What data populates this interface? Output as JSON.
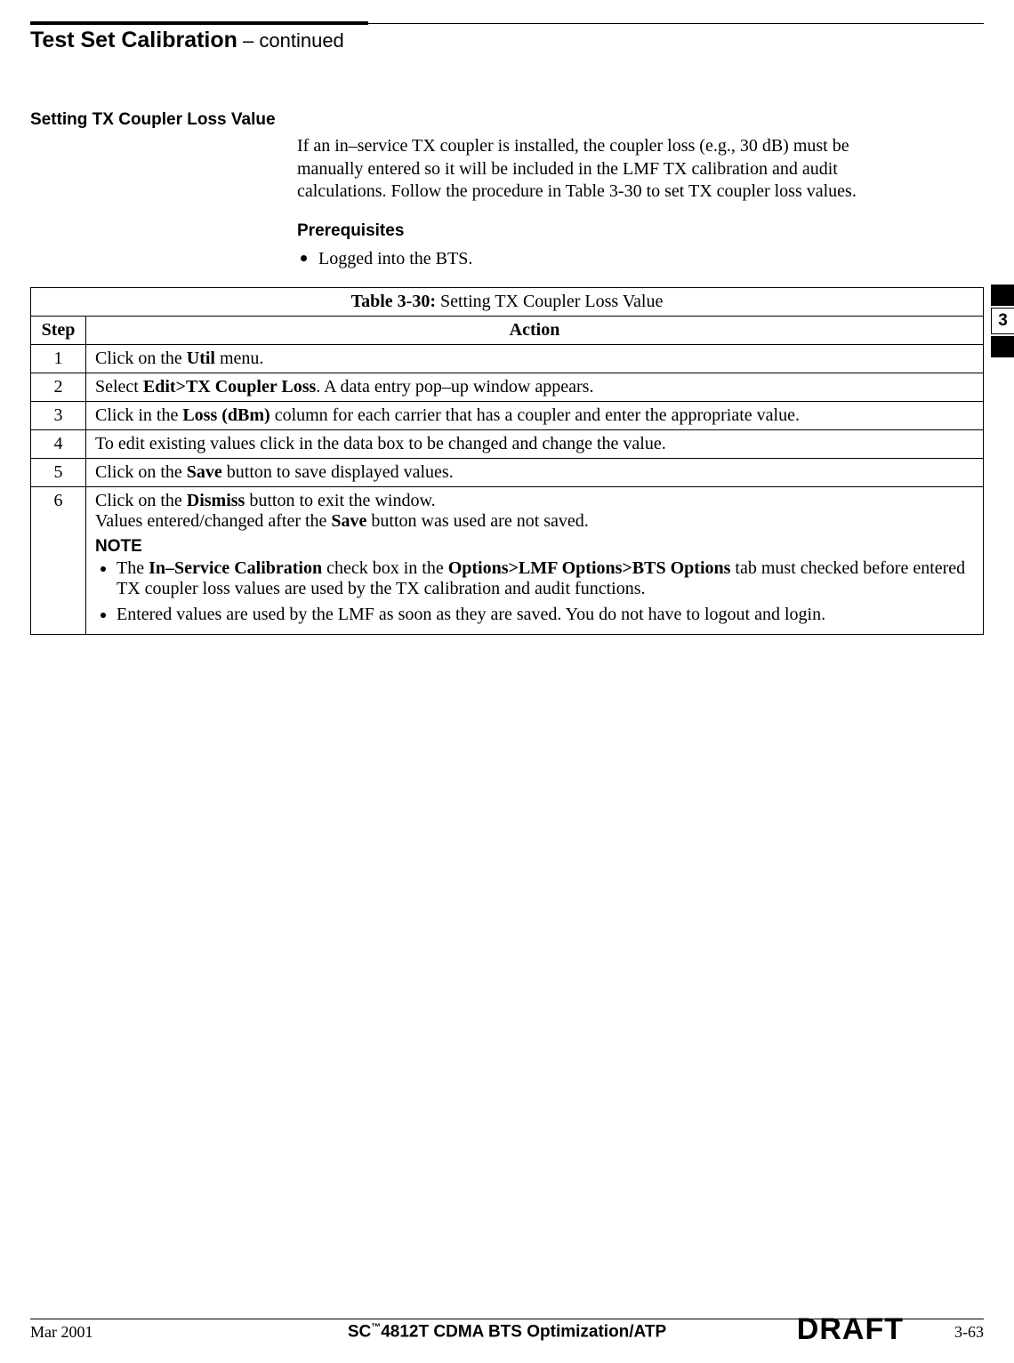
{
  "colors": {
    "text": "#000000",
    "background": "#ffffff",
    "rule": "#000000"
  },
  "typography": {
    "body_family": "Times New Roman",
    "heading_family": "Arial",
    "body_size_pt": 15,
    "heading_size_pt": 14,
    "title_size_pt": 19
  },
  "header": {
    "title_bold": "Test Set Calibration",
    "title_suffix": " – continued"
  },
  "section": {
    "heading": "Setting TX Coupler Loss Value",
    "intro": "If an in–service TX coupler is installed, the coupler loss (e.g., 30 dB) must be manually entered so it will be included in the LMF TX calibration and audit calculations. Follow the procedure in Table 3-30 to set TX coupler loss values.",
    "prereq_heading": "Prerequisites",
    "prereq_item": "Logged into the BTS."
  },
  "table": {
    "caption_bold": "Table 3-30:",
    "caption_rest": " Setting TX Coupler Loss Value",
    "columns": {
      "step": "Step",
      "action": "Action"
    },
    "rows": {
      "r1": {
        "step": "1",
        "pre": "Click on the ",
        "b1": "Util",
        "post": " menu."
      },
      "r2": {
        "step": "2",
        "pre": "Select ",
        "b1": "Edit>TX Coupler Loss",
        "post": ". A data entry pop–up window appears."
      },
      "r3": {
        "step": "3",
        "pre": "Click in the ",
        "b1": "Loss (dBm)",
        "post": " column for each carrier that has a coupler and enter the appropriate value."
      },
      "r4": {
        "step": "4",
        "text": "To edit existing values click in the data box to be changed and change the value."
      },
      "r5": {
        "step": "5",
        "pre": "Click on the ",
        "b1": "Save",
        "post": " button to save displayed values."
      },
      "r6": {
        "step": "6",
        "line1_pre": "Click on the ",
        "line1_b": "Dismiss",
        "line1_post": " button to exit the window.",
        "line2_pre": "Values entered/changed after the ",
        "line2_b": "Save",
        "line2_post": " button was used are not saved.",
        "note_head": "NOTE",
        "n1_pre": "The ",
        "n1_b1": "In–Service Calibration",
        "n1_mid": " check box in the ",
        "n1_b2": "Options>LMF Options>BTS Options",
        "n1_post": " tab must checked before entered TX coupler loss values are used by the TX calibration and audit functions.",
        "n2": "Entered values are used by the LMF as soon as they are saved. You do not have to logout and login."
      }
    }
  },
  "side_tab": {
    "chapter": "3"
  },
  "footer": {
    "date": "Mar 2001",
    "center_pre": "SC",
    "center_tm": "™",
    "center_post": "4812T CDMA BTS Optimization/ATP",
    "draft": "DRAFT",
    "pageno": "3-63"
  }
}
